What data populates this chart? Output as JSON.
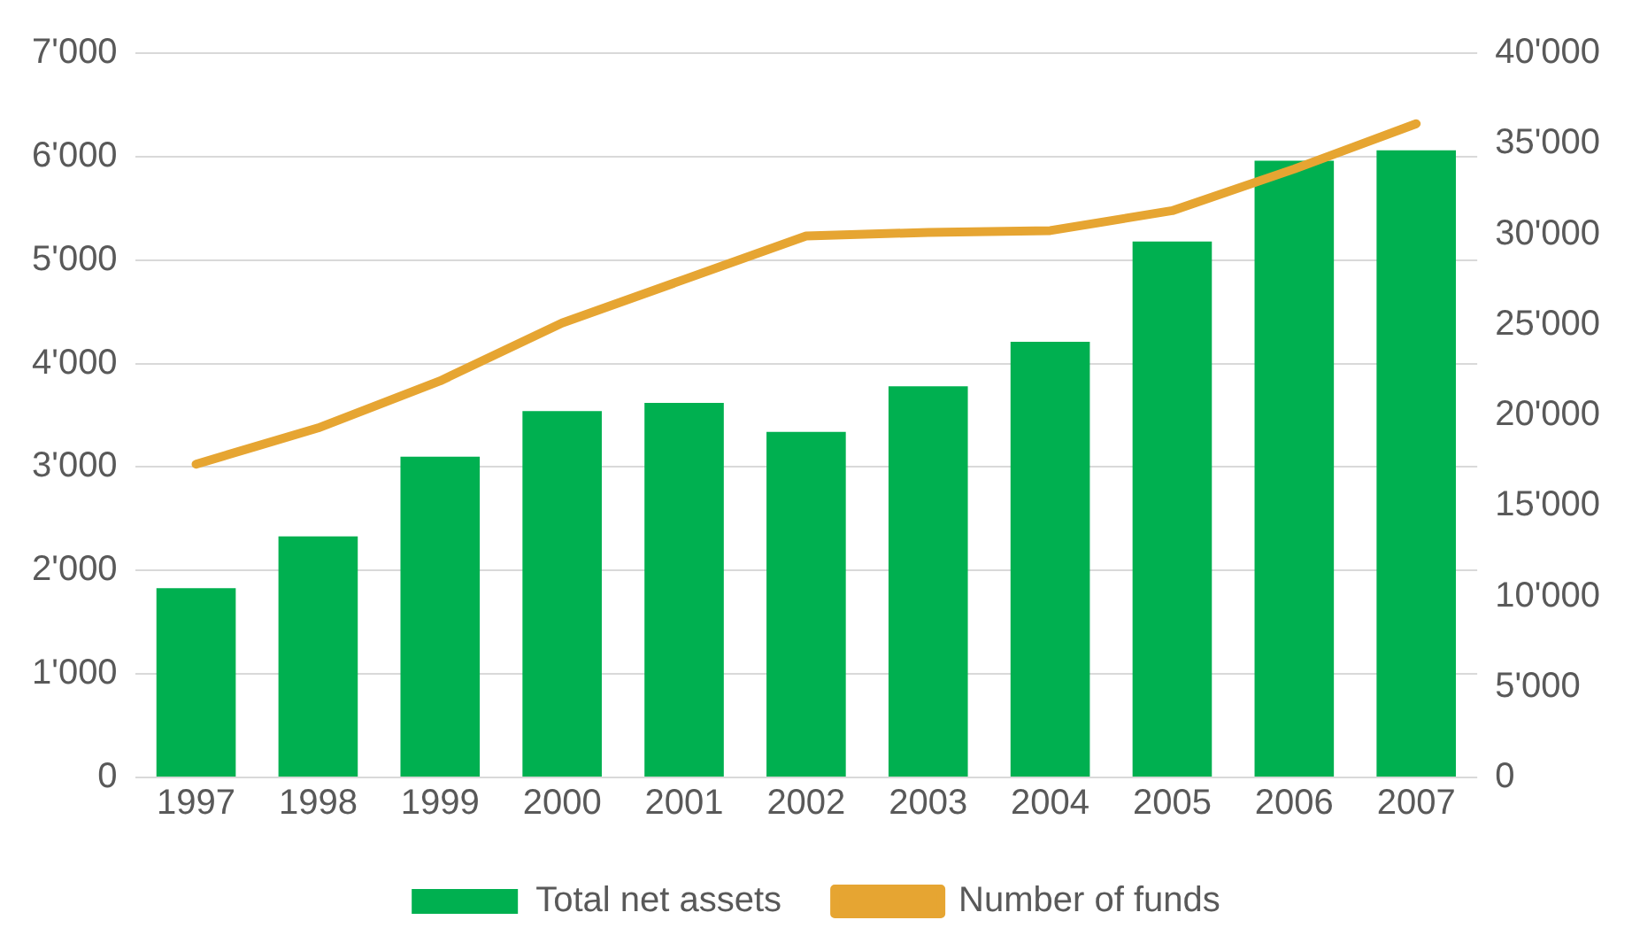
{
  "chart_data": {
    "type": "bar",
    "categories": [
      "1997",
      "1998",
      "1999",
      "2000",
      "2001",
      "2002",
      "2003",
      "2004",
      "2005",
      "2006",
      "2007"
    ],
    "series": [
      {
        "name": "Total net assets",
        "color": "#00b050",
        "values": [
          1830,
          2330,
          3100,
          3540,
          3620,
          3340,
          3780,
          4210,
          5180,
          5960,
          6060
        ]
      },
      {
        "name": "Number of funds",
        "type": "line",
        "axis": "y2",
        "color": "#e6a532",
        "values": [
          17300,
          19300,
          21900,
          25100,
          27500,
          29900,
          30100,
          30200,
          31300,
          33600,
          36100
        ]
      }
    ],
    "ylim": [
      0,
      7000
    ],
    "yticks": [
      {
        "value": 0,
        "label": "0"
      },
      {
        "value": 1000,
        "label": "1'000"
      },
      {
        "value": 2000,
        "label": "2'000"
      },
      {
        "value": 3000,
        "label": "3'000"
      },
      {
        "value": 4000,
        "label": "4'000"
      },
      {
        "value": 5000,
        "label": "5'000"
      },
      {
        "value": 6000,
        "label": "6'000"
      },
      {
        "value": 7000,
        "label": "7'000"
      }
    ],
    "y2lim": [
      0,
      40000
    ],
    "y2ticks": [
      {
        "value": 0,
        "label": "0"
      },
      {
        "value": 5000,
        "label": "5'000"
      },
      {
        "value": 10000,
        "label": "10'000"
      },
      {
        "value": 15000,
        "label": "15'000"
      },
      {
        "value": 20000,
        "label": "20'000"
      },
      {
        "value": 25000,
        "label": "25'000"
      },
      {
        "value": 30000,
        "label": "30'000"
      },
      {
        "value": 35000,
        "label": "35'000"
      },
      {
        "value": 40000,
        "label": "40'000"
      }
    ],
    "grid": "y",
    "legend": "bottom",
    "marker": "none",
    "line_style": "solid"
  }
}
